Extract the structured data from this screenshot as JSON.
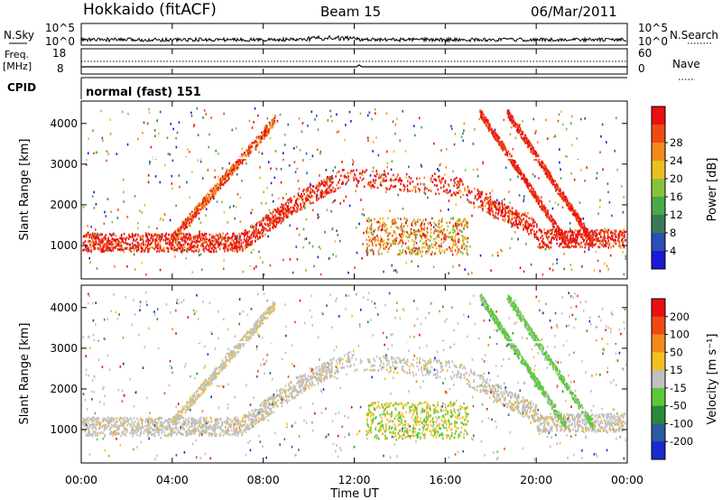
{
  "header": {
    "station": "Hokkaido (fitACF)",
    "beam": "Beam 15",
    "date": "06/Mar/2011"
  },
  "panels": {
    "nsky_label": "N.Sky",
    "nsky_ticks": [
      "10^5",
      "10^0"
    ],
    "nsearch_label": "N.Search",
    "nsearch_ticks": [
      "10^5",
      "10^0"
    ],
    "freq_label": "Freq.",
    "freq_unit": "[MHz]",
    "freq_ticks": [
      "18",
      "8"
    ],
    "nave_label": "Nave",
    "nave_ticks": [
      "60",
      "0"
    ],
    "cpid_label": "CPID",
    "cpid_value": "normal (fast) 151"
  },
  "chart_data": [
    {
      "type": "heatmap",
      "name": "power",
      "ylabel": "Slant Range [km]",
      "yticks": [
        1000,
        2000,
        3000,
        4000
      ],
      "ylim": [
        180,
        4550
      ],
      "xlim": [
        0,
        24
      ],
      "colorbar_label": "Power [dB]",
      "colorbar_ticks": [
        4,
        8,
        12,
        16,
        20,
        24,
        28
      ],
      "colorbar_colors": [
        "#1a1ad6",
        "#2a4fb5",
        "#3a7a5a",
        "#4aa84a",
        "#88c23a",
        "#e8c020",
        "#f08a1a",
        "#f04a14",
        "#e81010"
      ]
    },
    {
      "type": "heatmap",
      "name": "velocity",
      "ylabel": "Slant Range [km]",
      "yticks": [
        1000,
        2000,
        3000,
        4000
      ],
      "ylim": [
        180,
        4550
      ],
      "xlim": [
        0,
        24
      ],
      "colorbar_label": "Velocity [m s⁻¹]",
      "colorbar_ticks": [
        200,
        100,
        50,
        15,
        -15,
        -50,
        -100,
        -200
      ],
      "colorbar_colors": [
        "#1a2ad0",
        "#2a5aa0",
        "#2a8a3a",
        "#5ac83a",
        "#c0c0c0",
        "#f0c020",
        "#f08a1a",
        "#f04a14",
        "#e81010"
      ]
    }
  ],
  "xaxis": {
    "ticks": [
      "00:00",
      "04:00",
      "08:00",
      "12:00",
      "16:00",
      "20:00",
      "00:00"
    ],
    "label": "Time UT"
  }
}
